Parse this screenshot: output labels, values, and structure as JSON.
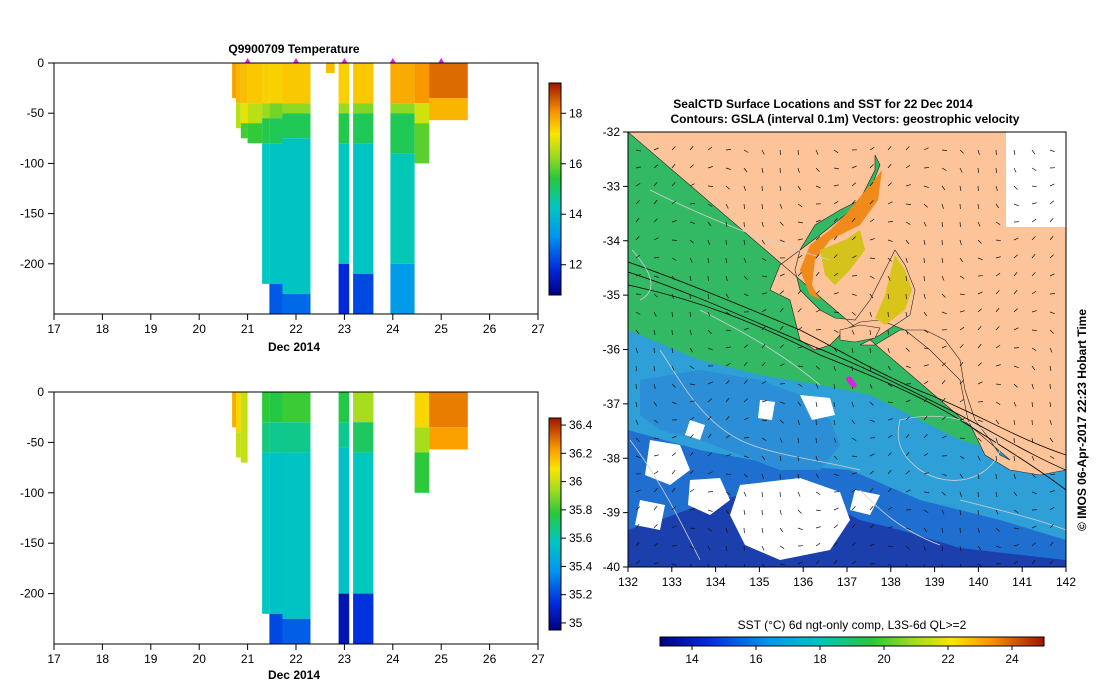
{
  "chart_data": [
    {
      "type": "heatmap",
      "title": "Q9900709  Temperature",
      "xlabel": "Dec 2014",
      "ylabel": "",
      "xlim": [
        17,
        27
      ],
      "ylim": [
        -250,
        0
      ],
      "xticks": [
        "17",
        "18",
        "19",
        "20",
        "21",
        "22",
        "23",
        "24",
        "25",
        "26",
        "27"
      ],
      "yticks": [
        "0",
        "-50",
        "-100",
        "-150",
        "-200"
      ],
      "colorbar": {
        "min": 10.8,
        "max": 19.2,
        "ticks": [
          "12",
          "14",
          "16",
          "18"
        ]
      },
      "profile_markers_x": [
        21.0,
        22.0,
        23.0,
        24.0,
        25.0
      ],
      "profiles": [
        {
          "x0": 20.68,
          "x1": 20.76,
          "bottom": -35,
          "layers": [
            {
              "d": 35,
              "v": 17.9
            }
          ]
        },
        {
          "x0": 20.76,
          "x1": 20.86,
          "bottom": -65,
          "layers": [
            {
              "d": 40,
              "v": 17.7
            },
            {
              "d": 65,
              "v": 16.6
            }
          ]
        },
        {
          "x0": 20.86,
          "x1": 21.0,
          "bottom": -75,
          "layers": [
            {
              "d": 40,
              "v": 17.6
            },
            {
              "d": 60,
              "v": 17.0
            },
            {
              "d": 75,
              "v": 15.6
            }
          ]
        },
        {
          "x0": 21.0,
          "x1": 21.3,
          "bottom": -80,
          "layers": [
            {
              "d": 40,
              "v": 17.5
            },
            {
              "d": 60,
              "v": 16.6
            },
            {
              "d": 80,
              "v": 15.5
            }
          ]
        },
        {
          "x0": 21.3,
          "x1": 21.45,
          "bottom": -220,
          "layers": [
            {
              "d": 40,
              "v": 17.4
            },
            {
              "d": 55,
              "v": 16.3
            },
            {
              "d": 80,
              "v": 15.3
            },
            {
              "d": 220,
              "v": 14.3
            }
          ]
        },
        {
          "x0": 21.45,
          "x1": 21.72,
          "bottom": -250,
          "layers": [
            {
              "d": 40,
              "v": 17.4
            },
            {
              "d": 55,
              "v": 16.0
            },
            {
              "d": 80,
              "v": 15.2
            },
            {
              "d": 220,
              "v": 14.2
            },
            {
              "d": 250,
              "v": 12.4
            }
          ]
        },
        {
          "x0": 21.72,
          "x1": 22.3,
          "bottom": -250,
          "layers": [
            {
              "d": 40,
              "v": 17.5
            },
            {
              "d": 50,
              "v": 16.2
            },
            {
              "d": 75,
              "v": 15.2
            },
            {
              "d": 230,
              "v": 14.2
            },
            {
              "d": 250,
              "v": 12.6
            }
          ]
        },
        {
          "x0": 22.62,
          "x1": 22.8,
          "bottom": -10,
          "layers": [
            {
              "d": 10,
              "v": 17.6
            }
          ]
        },
        {
          "x0": 22.88,
          "x1": 23.1,
          "bottom": -250,
          "layers": [
            {
              "d": 40,
              "v": 17.4
            },
            {
              "d": 50,
              "v": 16.3
            },
            {
              "d": 80,
              "v": 15.3
            },
            {
              "d": 200,
              "v": 14.3
            },
            {
              "d": 250,
              "v": 11.8
            }
          ]
        },
        {
          "x0": 23.18,
          "x1": 23.6,
          "bottom": -250,
          "layers": [
            {
              "d": 40,
              "v": 17.5
            },
            {
              "d": 50,
              "v": 16.1
            },
            {
              "d": 80,
              "v": 15.2
            },
            {
              "d": 210,
              "v": 14.2
            },
            {
              "d": 250,
              "v": 12.2
            }
          ]
        },
        {
          "x0": 23.95,
          "x1": 24.45,
          "bottom": -250,
          "layers": [
            {
              "d": 40,
              "v": 17.8
            },
            {
              "d": 50,
              "v": 16.2
            },
            {
              "d": 90,
              "v": 15.2
            },
            {
              "d": 200,
              "v": 14.4
            },
            {
              "d": 250,
              "v": 13.3
            }
          ]
        },
        {
          "x0": 24.45,
          "x1": 24.75,
          "bottom": -100,
          "layers": [
            {
              "d": 40,
              "v": 18.0
            },
            {
              "d": 60,
              "v": 16.8
            },
            {
              "d": 100,
              "v": 15.8
            }
          ]
        },
        {
          "x0": 24.75,
          "x1": 25.55,
          "bottom": -57,
          "layers": [
            {
              "d": 35,
              "v": 18.4
            },
            {
              "d": 57,
              "v": 17.7
            }
          ]
        }
      ]
    },
    {
      "type": "heatmap",
      "title": "",
      "xlabel": "Dec 2014",
      "ylabel": "",
      "xlim": [
        17,
        27
      ],
      "ylim": [
        -250,
        0
      ],
      "xticks": [
        "17",
        "18",
        "19",
        "20",
        "21",
        "22",
        "23",
        "24",
        "25",
        "26",
        "27"
      ],
      "yticks": [
        "0",
        "-50",
        "-100",
        "-150",
        "-200"
      ],
      "colorbar": {
        "min": 34.95,
        "max": 36.45,
        "ticks": [
          "35",
          "35.2",
          "35.4",
          "35.6",
          "35.8",
          "36",
          "36.2",
          "36.4"
        ]
      },
      "profiles": [
        {
          "x0": 20.68,
          "x1": 20.76,
          "bottom": -35,
          "layers": [
            {
              "d": 35,
              "v": 36.2
            }
          ]
        },
        {
          "x0": 20.76,
          "x1": 20.86,
          "bottom": -65,
          "layers": [
            {
              "d": 40,
              "v": 36.12
            },
            {
              "d": 65,
              "v": 36.0
            }
          ]
        },
        {
          "x0": 20.86,
          "x1": 21.0,
          "bottom": -70,
          "layers": [
            {
              "d": 70,
              "v": 36.0
            }
          ]
        },
        {
          "x0": 21.3,
          "x1": 21.45,
          "bottom": -220,
          "layers": [
            {
              "d": 30,
              "v": 35.78
            },
            {
              "d": 60,
              "v": 35.68
            },
            {
              "d": 220,
              "v": 35.57
            }
          ]
        },
        {
          "x0": 21.45,
          "x1": 21.72,
          "bottom": -250,
          "layers": [
            {
              "d": 30,
              "v": 35.76
            },
            {
              "d": 60,
              "v": 35.65
            },
            {
              "d": 220,
              "v": 35.55
            },
            {
              "d": 250,
              "v": 35.2
            }
          ]
        },
        {
          "x0": 21.72,
          "x1": 22.3,
          "bottom": -250,
          "layers": [
            {
              "d": 30,
              "v": 35.8
            },
            {
              "d": 60,
              "v": 35.66
            },
            {
              "d": 225,
              "v": 35.56
            },
            {
              "d": 250,
              "v": 35.25
            }
          ]
        },
        {
          "x0": 22.88,
          "x1": 23.1,
          "bottom": -250,
          "layers": [
            {
              "d": 30,
              "v": 35.76
            },
            {
              "d": 55,
              "v": 35.65
            },
            {
              "d": 200,
              "v": 35.55
            },
            {
              "d": 250,
              "v": 35.05
            }
          ]
        },
        {
          "x0": 23.18,
          "x1": 23.6,
          "bottom": -250,
          "layers": [
            {
              "d": 30,
              "v": 35.95
            },
            {
              "d": 60,
              "v": 35.72
            },
            {
              "d": 200,
              "v": 35.58
            },
            {
              "d": 250,
              "v": 35.15
            }
          ]
        },
        {
          "x0": 24.45,
          "x1": 24.75,
          "bottom": -100,
          "layers": [
            {
              "d": 35,
              "v": 36.12
            },
            {
              "d": 60,
              "v": 35.95
            },
            {
              "d": 100,
              "v": 35.78
            }
          ]
        },
        {
          "x0": 24.75,
          "x1": 25.55,
          "bottom": -57,
          "layers": [
            {
              "d": 35,
              "v": 36.28
            },
            {
              "d": 57,
              "v": 36.22
            }
          ]
        }
      ]
    },
    {
      "type": "heatmap",
      "title": "SealCTD Surface Locations and SST for 22 Dec 2014",
      "subtitle": "Contours: GSLA (interval 0.1m) Vectors: geostrophic velocity",
      "xlabel": "",
      "ylabel": "",
      "xlim": [
        132,
        142
      ],
      "ylim": [
        -40,
        -32
      ],
      "xticks": [
        "132",
        "133",
        "134",
        "135",
        "136",
        "137",
        "138",
        "139",
        "140",
        "141",
        "142"
      ],
      "yticks": [
        "-32",
        "-33",
        "-34",
        "-35",
        "-36",
        "-37",
        "-38",
        "-39",
        "-40"
      ],
      "colorbar": {
        "label": "SST (°C) 6d ngt-only comp, L3S-6d QL>=2",
        "min": 13,
        "max": 25,
        "ticks": [
          "14",
          "16",
          "18",
          "20",
          "22",
          "24"
        ]
      },
      "seal_locations": [
        {
          "lon": 137.1,
          "lat": -36.6
        },
        {
          "lon": 137.05,
          "lat": -36.55
        },
        {
          "lon": 137.15,
          "lat": -36.65
        }
      ],
      "timestamp": "© IMOS 06-Apr-2017 22:23 Hobart Time"
    }
  ]
}
